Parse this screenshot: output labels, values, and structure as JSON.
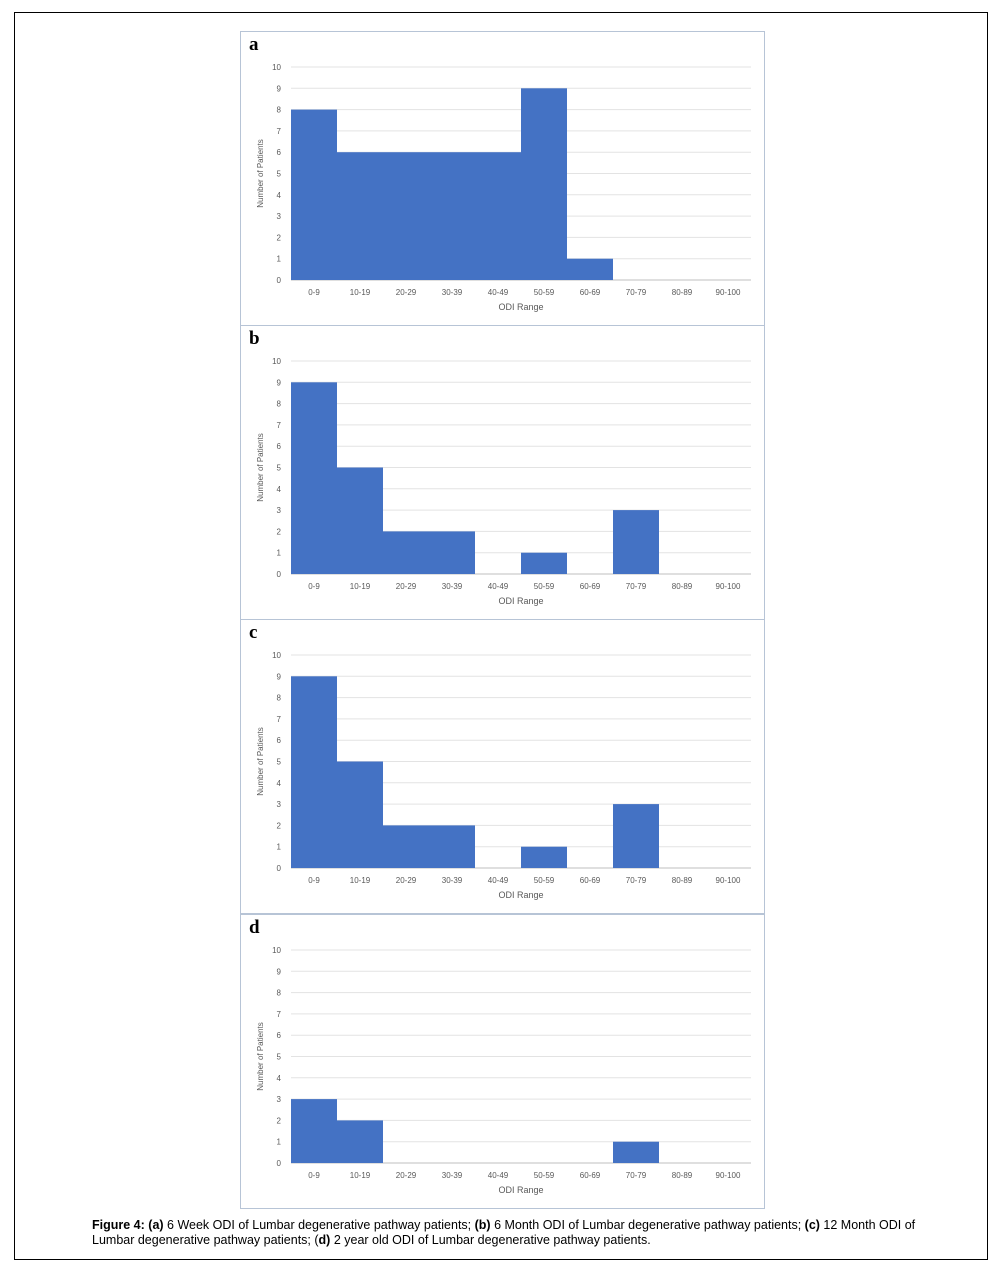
{
  "figure": {
    "caption_parts": [
      {
        "text": "Figure 4:",
        "bold": true
      },
      {
        "text": "  ",
        "bold": false
      },
      {
        "text": "(a)",
        "bold": true
      },
      {
        "text": " 6 Week ODI of Lumbar degenerative pathway patients; ",
        "bold": false
      },
      {
        "text": "(b)",
        "bold": true
      },
      {
        "text": " 6 Month ODI of Lumbar degenerative pathway patients; ",
        "bold": false
      },
      {
        "text": "(c)",
        "bold": true
      },
      {
        "text": " 12 Month ODI of Lumbar degenerative pathway patients; (",
        "bold": false
      },
      {
        "text": "d)",
        "bold": true
      },
      {
        "text": " 2 year old ODI of Lumbar degenerative pathway patients.",
        "bold": false
      }
    ]
  },
  "chart_data": [
    {
      "panel": "a",
      "type": "bar",
      "categories": [
        "0-9",
        "10-19",
        "20-29",
        "30-39",
        "40-49",
        "50-59",
        "60-69",
        "70-79",
        "80-89",
        "90-100"
      ],
      "values": [
        8,
        6,
        6,
        6,
        6,
        9,
        1,
        0,
        0,
        0
      ],
      "xlabel": "ODI Range",
      "ylabel": "Number of Patients",
      "ylim": [
        0,
        10
      ],
      "yticks": [
        0,
        1,
        2,
        3,
        4,
        5,
        6,
        7,
        8,
        9,
        10
      ],
      "grid": true,
      "bar_color": "#4472C4"
    },
    {
      "panel": "b",
      "type": "bar",
      "categories": [
        "0-9",
        "10-19",
        "20-29",
        "30-39",
        "40-49",
        "50-59",
        "60-69",
        "70-79",
        "80-89",
        "90-100"
      ],
      "values": [
        9,
        5,
        2,
        2,
        0,
        1,
        0,
        3,
        0,
        0
      ],
      "xlabel": "ODI Range",
      "ylabel": "Number of Patients",
      "ylim": [
        0,
        10
      ],
      "yticks": [
        0,
        1,
        2,
        3,
        4,
        5,
        6,
        7,
        8,
        9,
        10
      ],
      "grid": true,
      "bar_color": "#4472C4"
    },
    {
      "panel": "c",
      "type": "bar",
      "categories": [
        "0-9",
        "10-19",
        "20-29",
        "30-39",
        "40-49",
        "50-59",
        "60-69",
        "70-79",
        "80-89",
        "90-100"
      ],
      "values": [
        9,
        5,
        2,
        2,
        0,
        1,
        0,
        3,
        0,
        0
      ],
      "xlabel": "ODI Range",
      "ylabel": "Number of Patients",
      "ylim": [
        0,
        10
      ],
      "yticks": [
        0,
        1,
        2,
        3,
        4,
        5,
        6,
        7,
        8,
        9,
        10
      ],
      "grid": true,
      "bar_color": "#4472C4"
    },
    {
      "panel": "d",
      "type": "bar",
      "categories": [
        "0-9",
        "10-19",
        "20-29",
        "30-39",
        "40-49",
        "50-59",
        "60-69",
        "70-79",
        "80-89",
        "90-100"
      ],
      "values": [
        3,
        2,
        0,
        0,
        0,
        0,
        0,
        1,
        0,
        0
      ],
      "xlabel": "ODI Range",
      "ylabel": "Number of Patients",
      "ylim": [
        0,
        10
      ],
      "yticks": [
        0,
        1,
        2,
        3,
        4,
        5,
        6,
        7,
        8,
        9,
        10
      ],
      "grid": true,
      "bar_color": "#4472C4"
    }
  ]
}
